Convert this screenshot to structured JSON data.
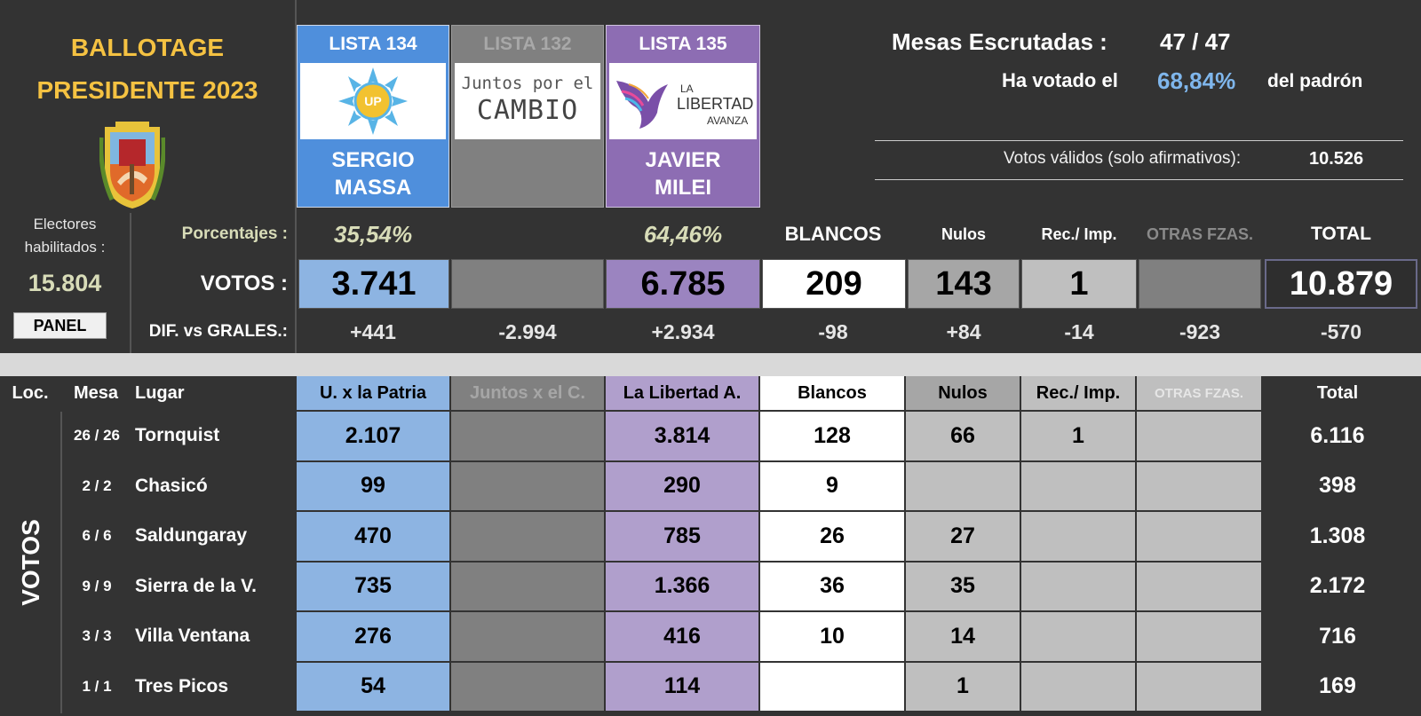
{
  "title": {
    "line1": "BALLOTAGE",
    "line2": "PRESIDENTE 2023"
  },
  "electores": {
    "label": "Electores habilitados :",
    "value": "15.804"
  },
  "panel_button": "PANEL",
  "lists": [
    {
      "header": "LISTA 134",
      "logo_text": "UP",
      "cand1": "SERGIO",
      "cand2": "MASSA",
      "color": "#4f8fdc"
    },
    {
      "header": "LISTA 132",
      "logo_line1": "Juntos por el",
      "logo_line2": "CAMBIO",
      "cand1": "",
      "cand2": "",
      "color": "#808080"
    },
    {
      "header": "LISTA 135",
      "logo_line1": "LA",
      "logo_line2": "LIBERTAD",
      "logo_line3": "AVANZA",
      "cand1": "JAVIER",
      "cand2": "MILEI",
      "color": "#8d6db3"
    }
  ],
  "summary": {
    "mesas_label": "Mesas Escrutadas :",
    "mesas_value": "47 / 47",
    "votado_label": "Ha votado el",
    "votado_pct": "68,84%",
    "votado_suffix": "del padrón",
    "validos_label": "Votos válidos (solo afirmativos):",
    "validos_value": "10.526"
  },
  "percent_row": {
    "label": "Porcentajes :",
    "up": "35,54%",
    "lla": "64,46%"
  },
  "col_headers": {
    "blancos": "BLANCOS",
    "nulos": "Nulos",
    "rec": "Rec./ Imp.",
    "otras": "OTRAS FZAS.",
    "total": "TOTAL"
  },
  "votos_row": {
    "label": "VOTOS :",
    "up": "3.741",
    "jxc": "",
    "lla": "6.785",
    "blancos": "209",
    "nulos": "143",
    "rec": "1",
    "otras": "",
    "total": "10.879"
  },
  "dif_row": {
    "label": "DIF. vs GRALES.:",
    "up": "+441",
    "jxc": "-2.994",
    "lla": "+2.934",
    "blancos": "-98",
    "nulos": "+84",
    "rec": "-14",
    "otras": "-923",
    "total": "-570"
  },
  "table": {
    "headers": {
      "loc": "Loc.",
      "mesa": "Mesa",
      "lugar": "Lugar",
      "up": "U. x la Patria",
      "jxc": "Juntos x el C.",
      "lla": "La Libertad A.",
      "blancos": "Blancos",
      "nulos": "Nulos",
      "rec": "Rec./ Imp.",
      "otras": "OTRAS FZAS.",
      "total": "Total"
    },
    "side_label": "VOTOS",
    "rows": [
      {
        "mesa": "26 / 26",
        "lugar": "Tornquist",
        "up": "2.107",
        "jxc": "",
        "lla": "3.814",
        "blancos": "128",
        "nulos": "66",
        "rec": "1",
        "otras": "",
        "total": "6.116"
      },
      {
        "mesa": "2 / 2",
        "lugar": "Chasicó",
        "up": "99",
        "jxc": "",
        "lla": "290",
        "blancos": "9",
        "nulos": "",
        "rec": "",
        "otras": "",
        "total": "398"
      },
      {
        "mesa": "6 / 6",
        "lugar": "Saldungaray",
        "up": "470",
        "jxc": "",
        "lla": "785",
        "blancos": "26",
        "nulos": "27",
        "rec": "",
        "otras": "",
        "total": "1.308"
      },
      {
        "mesa": "9 / 9",
        "lugar": "Sierra de la V.",
        "up": "735",
        "jxc": "",
        "lla": "1.366",
        "blancos": "36",
        "nulos": "35",
        "rec": "",
        "otras": "",
        "total": "2.172"
      },
      {
        "mesa": "3 / 3",
        "lugar": "Villa Ventana",
        "up": "276",
        "jxc": "",
        "lla": "416",
        "blancos": "10",
        "nulos": "14",
        "rec": "",
        "otras": "",
        "total": "716"
      },
      {
        "mesa": "1 / 1",
        "lugar": "Tres Picos",
        "up": "54",
        "jxc": "",
        "lla": "114",
        "blancos": "",
        "nulos": "1",
        "rec": "",
        "otras": "",
        "total": "169"
      }
    ]
  }
}
